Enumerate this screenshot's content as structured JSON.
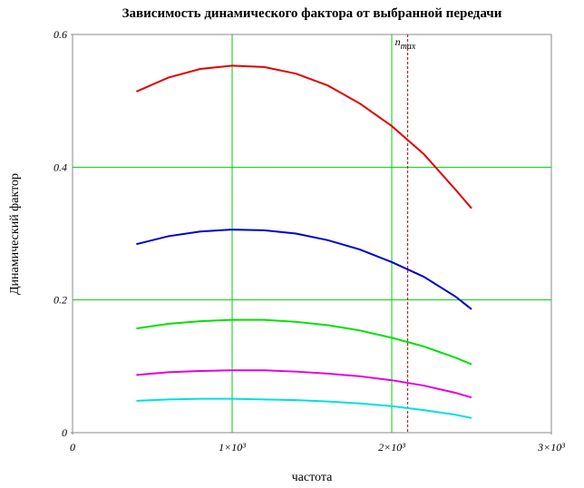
{
  "chart_data": {
    "type": "line",
    "title": "Зависимость динамического фактора от выбранной передачи",
    "xlabel": "частота",
    "ylabel": "Динамический фактор",
    "x": [
      400,
      600,
      800,
      1000,
      1200,
      1400,
      1600,
      1800,
      2000,
      2200,
      2400,
      2500
    ],
    "series": [
      {
        "color": "#e00000",
        "values": [
          0.514,
          0.535,
          0.548,
          0.553,
          0.551,
          0.541,
          0.523,
          0.496,
          0.462,
          0.42,
          0.366,
          0.338
        ]
      },
      {
        "color": "#0000cc",
        "values": [
          0.284,
          0.296,
          0.303,
          0.306,
          0.305,
          0.3,
          0.29,
          0.276,
          0.257,
          0.235,
          0.205,
          0.186
        ]
      },
      {
        "color": "#00e000",
        "values": [
          0.157,
          0.164,
          0.168,
          0.17,
          0.17,
          0.167,
          0.162,
          0.154,
          0.143,
          0.13,
          0.113,
          0.103
        ]
      },
      {
        "color": "#e000e0",
        "values": [
          0.087,
          0.091,
          0.093,
          0.094,
          0.094,
          0.092,
          0.089,
          0.085,
          0.079,
          0.071,
          0.06,
          0.053
        ]
      },
      {
        "color": "#00e0e0",
        "values": [
          0.048,
          0.05,
          0.051,
          0.051,
          0.05,
          0.049,
          0.047,
          0.044,
          0.04,
          0.034,
          0.027,
          0.022
        ]
      }
    ],
    "xlim": [
      0,
      3000
    ],
    "ylim": [
      0,
      0.6
    ],
    "xticks": [
      0,
      {
        "value": 1000,
        "label": "1×10³"
      },
      {
        "value": 2000,
        "label": "2×10³"
      },
      {
        "value": 3000,
        "label": "3×10³"
      }
    ],
    "yticks": [
      0,
      0.2,
      0.4,
      0.6
    ],
    "grid": true,
    "grid_color": "#00d000",
    "marker_line": {
      "x": 2100,
      "label": "n",
      "label_sub": "max",
      "color": "#cc0000"
    }
  }
}
